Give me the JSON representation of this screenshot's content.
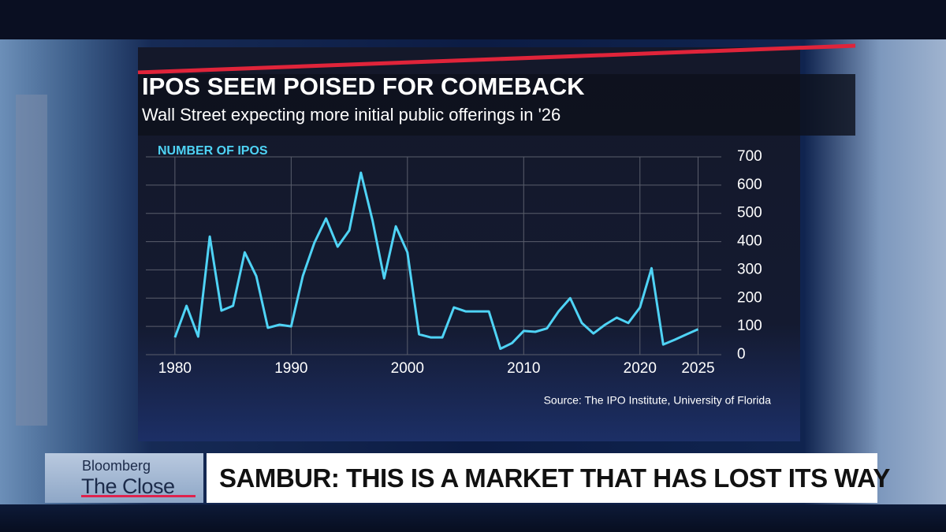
{
  "chart_data": {
    "type": "line",
    "title": "IPOS SEEM POISED FOR COMEBACK",
    "subtitle": "Wall Street expecting more initial public offerings in '26",
    "y_label": "NUMBER OF IPOS",
    "source": "Source: The IPO Institute, University of Florida",
    "x": [
      1980,
      1981,
      1982,
      1983,
      1984,
      1985,
      1986,
      1987,
      1988,
      1989,
      1990,
      1991,
      1992,
      1993,
      1994,
      1995,
      1996,
      1997,
      1998,
      1999,
      2000,
      2001,
      2002,
      2003,
      2004,
      2005,
      2006,
      2007,
      2008,
      2009,
      2010,
      2011,
      2012,
      2013,
      2014,
      2015,
      2016,
      2017,
      2018,
      2019,
      2020,
      2021,
      2022,
      2023,
      2024,
      2025
    ],
    "series": [
      {
        "color": "#4fd3f5",
        "values": [
          61,
          173,
          64,
          418,
          156,
          173,
          362,
          278,
          95,
          106,
          100,
          278,
          396,
          482,
          382,
          440,
          644,
          474,
          270,
          454,
          362,
          72,
          61,
          61,
          167,
          153,
          153,
          153,
          21,
          41,
          84,
          81,
          93,
          153,
          200,
          112,
          75,
          106,
          131,
          112,
          167,
          306,
          36,
          53,
          72,
          90
        ]
      }
    ],
    "xlim": [
      1977.5,
      2027
    ],
    "xticks": [
      1980,
      1990,
      2000,
      2010,
      2020,
      2025
    ],
    "ylim": [
      0,
      700
    ],
    "yticks": [
      0,
      100,
      200,
      300,
      400,
      500,
      600,
      700
    ],
    "grid": true
  },
  "broadcast": {
    "brand": "Bloomberg",
    "show": "The Close",
    "headline": "SAMBUR: THIS IS A MARKET THAT HAS LOST ITS WAY"
  }
}
